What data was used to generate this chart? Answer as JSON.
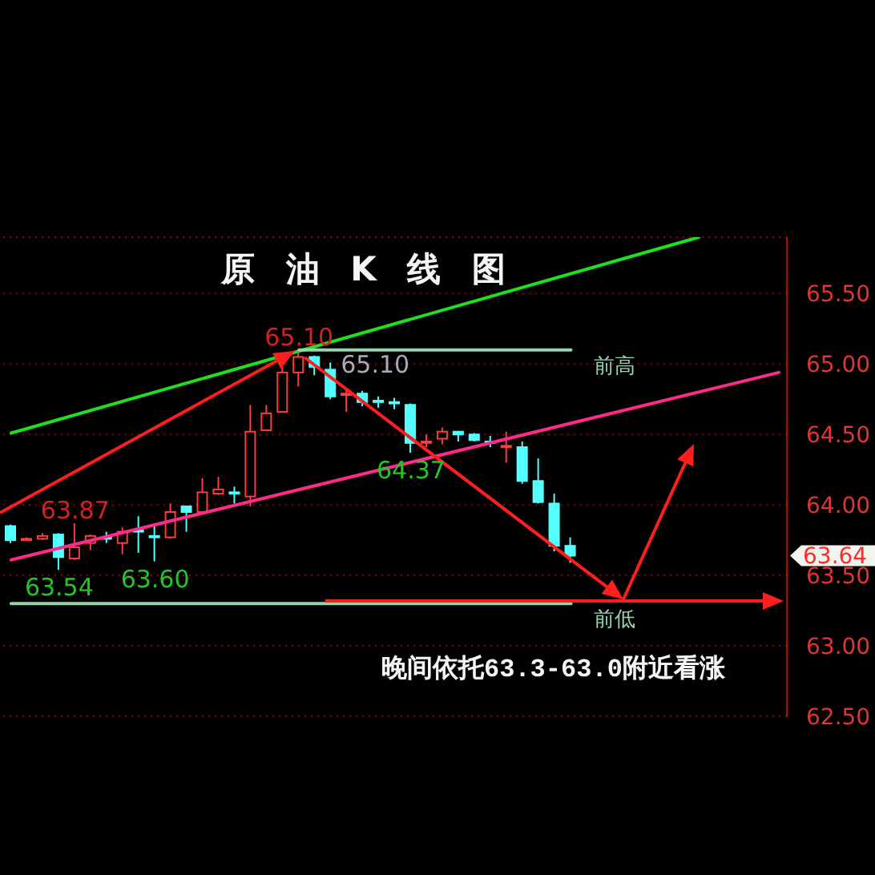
{
  "chart_data": {
    "type": "candlestick",
    "title": "原 油 K 线 图",
    "categories": [
      null,
      null,
      null,
      null,
      null,
      null,
      null,
      null,
      null,
      null,
      null,
      null,
      null,
      null,
      null,
      null,
      null,
      null,
      null,
      null,
      null,
      null,
      null,
      null,
      null,
      null,
      null,
      null,
      null,
      null,
      null,
      null,
      null,
      null,
      null,
      null,
      null,
      null,
      null,
      null,
      null,
      null,
      null,
      null,
      null,
      null,
      null,
      null,
      null
    ],
    "ohlc": [
      [
        63.85,
        63.86,
        63.73,
        63.75
      ],
      [
        63.75,
        63.77,
        63.75,
        63.76
      ],
      [
        63.76,
        63.8,
        63.75,
        63.78
      ],
      [
        63.79,
        63.8,
        63.54,
        63.63
      ],
      [
        63.62,
        63.87,
        63.61,
        63.7
      ],
      [
        63.73,
        63.79,
        63.68,
        63.78
      ],
      [
        63.77,
        63.81,
        63.73,
        63.76
      ],
      [
        63.73,
        63.84,
        63.65,
        63.81
      ],
      [
        63.82,
        63.92,
        63.66,
        63.81
      ],
      [
        63.78,
        63.86,
        63.6,
        63.77
      ],
      [
        63.77,
        64.01,
        63.76,
        63.95
      ],
      [
        63.99,
        63.99,
        63.81,
        63.95
      ],
      [
        63.95,
        64.19,
        63.95,
        64.09
      ],
      [
        64.08,
        64.2,
        64.07,
        64.11
      ],
      [
        64.09,
        64.13,
        64.01,
        64.08
      ],
      [
        64.06,
        64.71,
        63.99,
        64.52
      ],
      [
        64.53,
        64.71,
        64.53,
        64.65
      ],
      [
        64.66,
        64.98,
        64.66,
        64.94
      ],
      [
        64.94,
        65.1,
        64.84,
        65.05
      ],
      [
        65.05,
        65.06,
        64.92,
        64.98
      ],
      [
        64.96,
        65.01,
        64.75,
        64.77
      ],
      [
        64.78,
        64.83,
        64.66,
        64.79
      ],
      [
        64.79,
        64.81,
        64.7,
        64.73
      ],
      [
        64.74,
        64.77,
        64.69,
        64.73
      ],
      [
        64.73,
        64.76,
        64.68,
        64.72
      ],
      [
        64.71,
        64.72,
        64.37,
        64.44
      ],
      [
        64.44,
        64.5,
        64.41,
        64.45
      ],
      [
        64.47,
        64.55,
        64.43,
        64.52
      ],
      [
        64.52,
        64.52,
        64.45,
        64.5
      ],
      [
        64.5,
        64.51,
        64.45,
        64.46
      ],
      [
        64.45,
        64.49,
        64.41,
        64.44
      ],
      [
        64.41,
        64.52,
        64.3,
        64.42
      ],
      [
        64.41,
        64.45,
        64.15,
        64.17
      ],
      [
        64.17,
        64.33,
        64.01,
        64.02
      ],
      [
        64.01,
        64.08,
        63.67,
        63.71
      ],
      [
        63.71,
        63.77,
        63.59,
        63.64
      ],
      null,
      null,
      null,
      null,
      null,
      null,
      null,
      null,
      null,
      null,
      null,
      null,
      null
    ],
    "colors": [
      "#54ffff",
      "#ff3c3c",
      "#ff3c3c",
      "#54ffff",
      "#ff3c3c",
      "#ff3c3c",
      "#54ffff",
      "#ff3c3c",
      "#54ffff",
      "#54ffff",
      "#ff3c3c",
      "#54ffff",
      "#ff3c3c",
      "#ff3c3c",
      "#54ffff",
      "#ff3c3c",
      "#ff3c3c",
      "#ff3c3c",
      "#ff3c3c",
      "#54ffff",
      "#54ffff",
      "#ff3c3c",
      "#54ffff",
      "#54ffff",
      "#54ffff",
      "#54ffff",
      "#ff3c3c",
      "#ff3c3c",
      "#54ffff",
      "#54ffff",
      "#54ffff",
      "#ff3c3c",
      "#54ffff",
      "#54ffff",
      "#54ffff",
      "#54ffff",
      null,
      null,
      null,
      null,
      null,
      null,
      null,
      null,
      null,
      null,
      null,
      null,
      null
    ],
    "series": [
      {
        "type": "line",
        "color": "#1fe01f",
        "values": [
          64.51,
          null,
          null,
          null,
          null,
          null,
          null,
          null,
          null,
          null,
          null,
          null,
          null,
          null,
          null,
          null,
          null,
          null,
          null,
          null,
          null,
          null,
          null,
          null,
          null,
          null,
          null,
          null,
          null,
          null,
          null,
          null,
          null,
          null,
          null,
          null,
          null,
          null,
          null,
          null,
          null,
          null,
          null,
          65.9,
          null,
          null,
          null,
          null,
          null
        ]
      },
      {
        "type": "line",
        "color": "#ff2a8c",
        "values": [
          63.61,
          null,
          null,
          null,
          null,
          null,
          null,
          null,
          null,
          null,
          null,
          null,
          null,
          null,
          null,
          null,
          null,
          null,
          null,
          null,
          null,
          null,
          null,
          null,
          null,
          null,
          null,
          null,
          null,
          null,
          null,
          null,
          null,
          null,
          null,
          null,
          null,
          null,
          null,
          null,
          null,
          null,
          null,
          null,
          null,
          null,
          null,
          null,
          64.94
        ]
      },
      {
        "type": "line",
        "name": "前高",
        "color": "#95d2ad",
        "values": [
          null,
          null,
          null,
          null,
          null,
          null,
          null,
          null,
          null,
          null,
          null,
          null,
          null,
          null,
          null,
          null,
          null,
          null,
          65.1,
          null,
          null,
          null,
          null,
          null,
          null,
          null,
          null,
          null,
          null,
          null,
          null,
          null,
          null,
          null,
          null,
          65.1,
          null,
          null,
          null,
          null,
          null,
          null,
          null,
          null,
          null,
          null,
          null,
          null,
          null
        ],
        "value_labels": [
          null,
          null,
          null,
          null,
          null,
          null,
          null,
          null,
          null,
          null,
          null,
          null,
          null,
          null,
          null,
          null,
          null,
          null,
          "65.10",
          null,
          null,
          null,
          null,
          null,
          null,
          null,
          null,
          null,
          null,
          null,
          null,
          null,
          null,
          null,
          null,
          null,
          null,
          null,
          null,
          null,
          null,
          null,
          null,
          null,
          null,
          null,
          null,
          null,
          null
        ]
      },
      {
        "type": "line",
        "name": "前低",
        "color": "#95d2ad",
        "values": [
          63.3,
          null,
          null,
          null,
          null,
          null,
          null,
          null,
          null,
          null,
          null,
          null,
          null,
          null,
          null,
          null,
          null,
          null,
          null,
          null,
          null,
          null,
          null,
          null,
          null,
          null,
          null,
          null,
          null,
          null,
          null,
          null,
          null,
          null,
          null,
          63.3,
          null,
          null,
          null,
          null,
          null,
          null,
          null,
          null,
          null,
          null,
          null,
          null,
          null
        ]
      }
    ],
    "ylim": [
      62.5,
      65.9
    ],
    "yticks": [
      {
        "value": 62.5,
        "label": "62.50"
      },
      {
        "value": 63,
        "label": "63.00"
      },
      {
        "value": 63.5,
        "label": "63.50"
      },
      {
        "value": 64,
        "label": "64.00"
      },
      {
        "value": 64.5,
        "label": "64.50"
      },
      {
        "value": 65,
        "label": "65.00"
      },
      {
        "value": 65.5,
        "label": "65.50"
      }
    ],
    "grid": "y",
    "tick_labels": "y",
    "annotations": [
      "晚间依托63.3-63.0附近看涨",
      "63.64",
      {
        "text": "63.87",
        "y": 63.87
      },
      {
        "text": "63.54",
        "y": 63.54
      },
      {
        "text": "63.60",
        "y": 63.6
      },
      {
        "text": "65.10",
        "y": 65.1
      },
      {
        "text": "64.37",
        "y": 64.37
      }
    ]
  }
}
